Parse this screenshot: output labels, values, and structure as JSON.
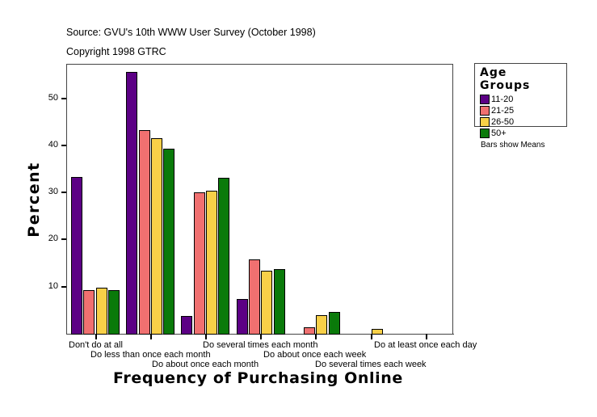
{
  "header": {
    "source": "Source: GVU's 10th WWW User Survey (October 1998)",
    "copyright": "Copyright 1998 GTRC"
  },
  "legend": {
    "title": "Age Groups",
    "items": [
      {
        "label": "11-20",
        "color": "#5c0085"
      },
      {
        "label": "21-25",
        "color": "#f07070"
      },
      {
        "label": "26-50",
        "color": "#f8d048"
      },
      {
        "label": "50+",
        "color": "#0a7a0a"
      }
    ]
  },
  "note": "Bars show Means",
  "axes": {
    "y_title": "Percent",
    "x_title": "Frequency of Purchasing Online",
    "y_ticks": [
      "10",
      "20",
      "30",
      "40",
      "50"
    ]
  },
  "chart_data": {
    "type": "bar",
    "title": "",
    "xlabel": "Frequency of Purchasing Online",
    "ylabel": "Percent",
    "ylim": [
      0,
      57.2
    ],
    "y_ticks": [
      10,
      20,
      30,
      40,
      50
    ],
    "grid": false,
    "legend_position": "right",
    "legend_title": "Age Groups",
    "categories": [
      "Don't do at all",
      "Do less than once each month",
      "Do about once each month",
      "Do several times each month",
      "Do about once each week",
      "Do several times each week",
      "Do at least once each day"
    ],
    "series": [
      {
        "name": "11-20",
        "color": "#5c0085",
        "values": [
          33.3,
          55.6,
          3.7,
          7.4,
          0,
          0,
          0
        ]
      },
      {
        "name": "21-25",
        "color": "#f07070",
        "values": [
          9.2,
          43.3,
          30.1,
          15.8,
          1.3,
          0,
          0
        ]
      },
      {
        "name": "26-50",
        "color": "#f8d048",
        "values": [
          9.7,
          41.5,
          30.3,
          13.3,
          4.0,
          1.0,
          0
        ]
      },
      {
        "name": "50+",
        "color": "#0a7a0a",
        "values": [
          9.2,
          39.3,
          33.1,
          13.8,
          4.6,
          0,
          0
        ]
      }
    ],
    "annotations": [
      "Bars show Means",
      "Source: GVU's 10th WWW User Survey (October 1998)",
      "Copyright 1998 GTRC"
    ]
  }
}
